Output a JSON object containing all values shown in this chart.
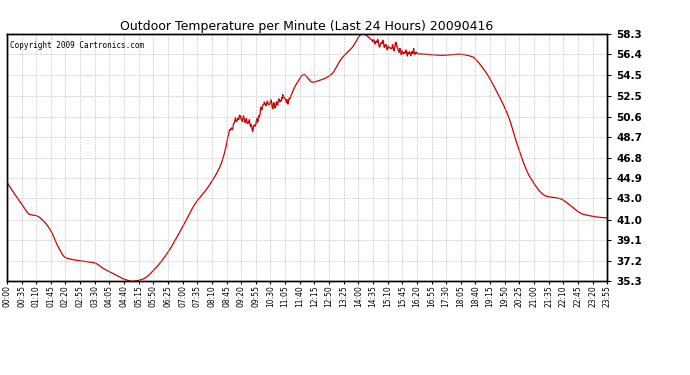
{
  "title": "Outdoor Temperature per Minute (Last 24 Hours) 20090416",
  "copyright": "Copyright 2009 Cartronics.com",
  "line_color": "#cc0000",
  "bg_color": "#ffffff",
  "plot_bg_color": "#ffffff",
  "grid_color": "#aaaaaa",
  "ylim": [
    35.3,
    58.3
  ],
  "yticks": [
    35.3,
    37.2,
    39.1,
    41.0,
    43.0,
    44.9,
    46.8,
    48.7,
    50.6,
    52.5,
    54.5,
    56.4,
    58.3
  ],
  "xtick_labels": [
    "00:00",
    "00:35",
    "01:10",
    "01:45",
    "02:20",
    "02:55",
    "03:30",
    "04:05",
    "04:40",
    "05:15",
    "05:50",
    "06:25",
    "07:00",
    "07:35",
    "08:10",
    "08:45",
    "09:20",
    "09:55",
    "10:30",
    "11:05",
    "11:40",
    "12:15",
    "12:50",
    "13:25",
    "14:00",
    "14:35",
    "15:10",
    "15:45",
    "16:20",
    "16:55",
    "17:30",
    "18:05",
    "18:40",
    "19:15",
    "19:50",
    "20:25",
    "21:00",
    "21:35",
    "22:10",
    "22:45",
    "23:20",
    "23:55"
  ],
  "keypoints_minutes": [
    0,
    35,
    55,
    70,
    85,
    105,
    120,
    140,
    175,
    210,
    230,
    260,
    280,
    300,
    325,
    355,
    385,
    415,
    450,
    480,
    510,
    545,
    560,
    575,
    590,
    610,
    625,
    640,
    660,
    670,
    690,
    710,
    730,
    750,
    775,
    800,
    825,
    850,
    880,
    920,
    960,
    1000,
    1040,
    1080,
    1110,
    1140,
    1170,
    1200,
    1220,
    1250,
    1290,
    1320,
    1380,
    1435
  ],
  "keypoints_temp": [
    44.5,
    42.5,
    41.5,
    41.4,
    41.0,
    40.0,
    38.7,
    37.5,
    37.2,
    37.0,
    36.5,
    35.9,
    35.5,
    35.3,
    35.5,
    36.5,
    38.0,
    40.0,
    42.5,
    44.0,
    46.0,
    50.3,
    50.6,
    50.2,
    49.5,
    51.5,
    52.0,
    51.5,
    52.5,
    52.0,
    53.5,
    54.5,
    53.8,
    54.0,
    54.5,
    56.0,
    57.0,
    58.3,
    57.5,
    57.0,
    56.5,
    56.4,
    56.3,
    56.4,
    56.2,
    55.0,
    53.0,
    50.5,
    48.0,
    45.0,
    43.2,
    43.0,
    41.5,
    41.2
  ]
}
